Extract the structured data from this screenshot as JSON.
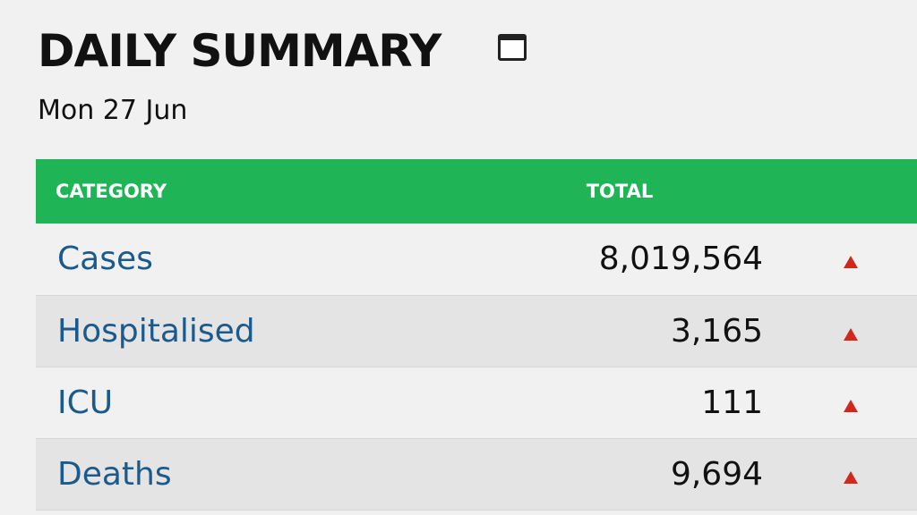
{
  "header": {
    "title": "DAILY SUMMARY",
    "date": "Mon 27 Jun"
  },
  "table": {
    "columns": [
      "CATEGORY",
      "TOTAL"
    ],
    "rows": [
      [
        "Cases",
        "8,019,564"
      ],
      [
        "Hospitalised",
        "3,165"
      ],
      [
        "ICU",
        "111"
      ],
      [
        "Deaths",
        "9,694"
      ]
    ]
  }
}
